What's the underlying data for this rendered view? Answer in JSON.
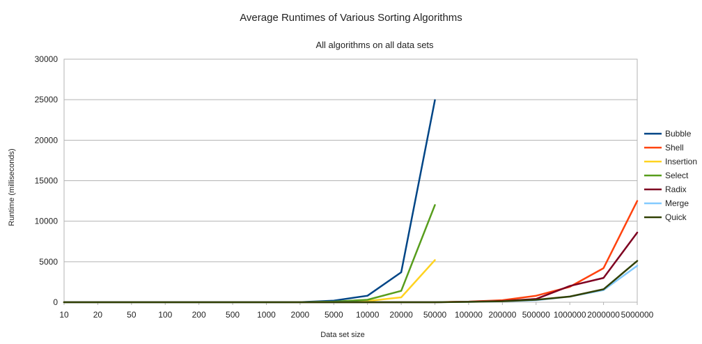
{
  "chart_data": {
    "type": "line",
    "title": "Average Runtimes of Various Sorting Algorithms",
    "subtitle": "All algorithms on all data sets",
    "xlabel": "Data set size",
    "ylabel": "Runtime (milliseconds)",
    "categories": [
      "10",
      "20",
      "50",
      "100",
      "200",
      "500",
      "1000",
      "2000",
      "5000",
      "10000",
      "20000",
      "50000",
      "100000",
      "200000",
      "500000",
      "1000000",
      "2000000",
      "5000000"
    ],
    "ylim": [
      0,
      30000
    ],
    "yticks": [
      0,
      5000,
      10000,
      15000,
      20000,
      25000,
      30000
    ],
    "grid": true,
    "legend_position": "right",
    "series": [
      {
        "name": "Bubble",
        "color": "#004586",
        "values": [
          0,
          0,
          0,
          0,
          0,
          0,
          0,
          10,
          200,
          800,
          3700,
          24950,
          null,
          null,
          null,
          null,
          null,
          null
        ]
      },
      {
        "name": "Shell",
        "color": "#ff420e",
        "values": [
          0,
          0,
          0,
          0,
          0,
          0,
          0,
          0,
          0,
          0,
          0,
          0,
          80,
          250,
          800,
          1900,
          4200,
          12500
        ]
      },
      {
        "name": "Insertion",
        "color": "#ffd320",
        "values": [
          0,
          0,
          0,
          0,
          0,
          0,
          0,
          5,
          50,
          150,
          600,
          5200,
          null,
          null,
          null,
          null,
          null,
          null
        ]
      },
      {
        "name": "Select",
        "color": "#579d1c",
        "values": [
          0,
          0,
          0,
          0,
          0,
          0,
          0,
          8,
          80,
          300,
          1400,
          12000,
          null,
          null,
          null,
          null,
          null,
          null
        ]
      },
      {
        "name": "Radix",
        "color": "#7e0021",
        "values": [
          0,
          0,
          0,
          0,
          0,
          0,
          0,
          0,
          0,
          0,
          0,
          0,
          60,
          150,
          400,
          2000,
          3000,
          8600
        ]
      },
      {
        "name": "Merge",
        "color": "#83caff",
        "values": [
          0,
          0,
          0,
          0,
          0,
          0,
          0,
          0,
          0,
          0,
          0,
          0,
          40,
          100,
          250,
          700,
          1500,
          4500
        ]
      },
      {
        "name": "Quick",
        "color": "#314004",
        "values": [
          0,
          0,
          0,
          0,
          0,
          0,
          0,
          0,
          0,
          0,
          0,
          0,
          40,
          120,
          300,
          700,
          1600,
          5100
        ]
      }
    ]
  }
}
